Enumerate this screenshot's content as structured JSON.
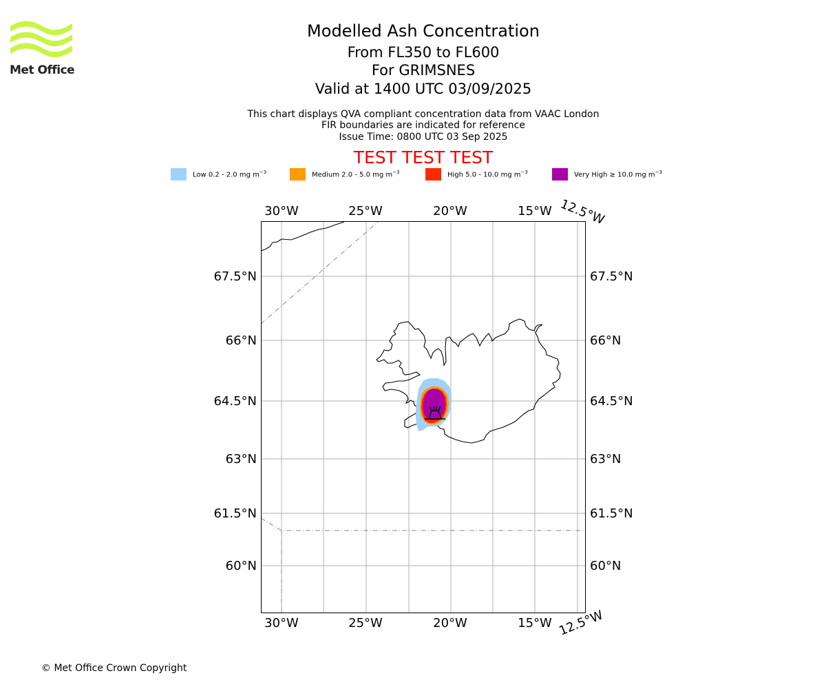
{
  "logo": {
    "text": "Met Office",
    "color": "#c8f542"
  },
  "title": {
    "main": "Modelled Ash Concentration",
    "levels": "From FL350 to FL600",
    "volcano": "For GRIMSNES",
    "valid": "Valid at 1400 UTC 03/09/2025"
  },
  "subtitle": {
    "line1": "This chart displays QVA compliant concentration data from VAAC London",
    "line2": "FIR boundaries are indicated for reference",
    "line3": "Issue Time: 0800 UTC 03 Sep 2025"
  },
  "banner": {
    "text": "TEST TEST TEST",
    "color": "#ee0000"
  },
  "legend": [
    {
      "label": "Low 0.2 - 2.0 mg m",
      "color": "#a0d2f8"
    },
    {
      "label": "Medium 2.0 - 5.0 mg m",
      "color": "#ff9a00"
    },
    {
      "label": "High 5.0 - 10.0 mg m",
      "color": "#ff2a00"
    },
    {
      "label": "Very High  ≥  10.0 mg m",
      "color": "#aa00aa"
    }
  ],
  "legend_unit_exponent": "−3",
  "map": {
    "lon_labels": [
      "30°W",
      "25°W",
      "20°W",
      "15°W",
      "12.5°W"
    ],
    "lat_labels": [
      "67.5°N",
      "66°N",
      "64.5°N",
      "63°N",
      "61.5°N",
      "60°N"
    ],
    "grid": true,
    "features": [
      "Iceland coastline",
      "FIR boundaries",
      "Grimsnes volcano marker",
      "ash concentration contours"
    ]
  },
  "footer": {
    "copyright": "© Met Office Crown Copyright"
  }
}
